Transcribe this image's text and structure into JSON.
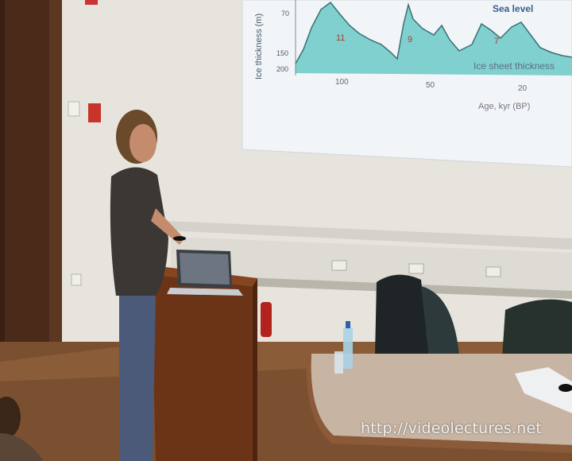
{
  "slide": {
    "y_axis_label": "Ice thickness (m)",
    "y_ticks": [
      "70",
      "150",
      "200"
    ],
    "peak_labels": [
      "11",
      "9",
      "7"
    ],
    "sea_level_label": "Sea level",
    "ice_sheet_label": "Ice sheet thickness",
    "x_ticks": [
      "100",
      "50",
      "20"
    ],
    "x_axis_label": "Age, kyr (BP)",
    "colors": {
      "fill": "#7fd0cf",
      "line": "#3a6f73"
    }
  },
  "room": {
    "wall_color": "#e6e4dc",
    "door_color": "#4a2a18",
    "floor_color": "#7a5030",
    "table_color": "#c7b4a3",
    "podium_color": "#6b3417"
  },
  "laptop_icon": "laptop-icon",
  "bottle_icon": "water-bottle-icon",
  "watermark": "http://videolectures.net"
}
